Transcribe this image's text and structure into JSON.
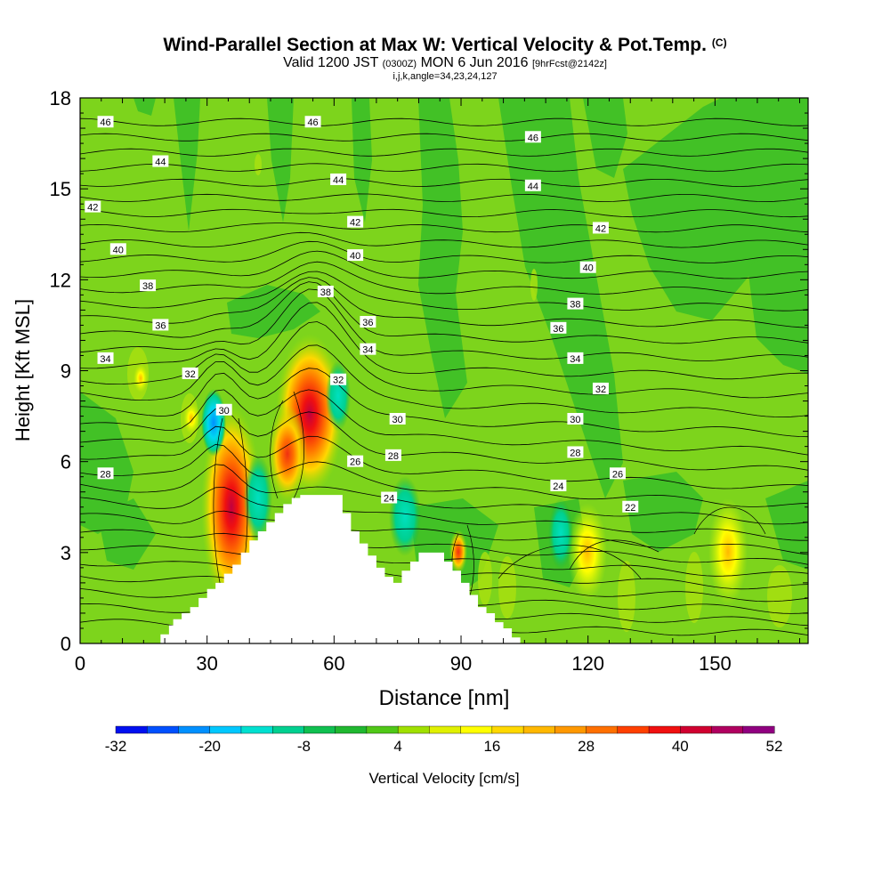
{
  "title": {
    "main": "Wind-Parallel Section at Max W: Vertical Velocity & Pot.Temp.",
    "main_suffix": "(C)",
    "valid_prefix": "Valid 1200 JST",
    "valid_utc": "(0300Z)",
    "valid_date": "MON 6 Jun 2016",
    "forecast": "[9hrFcst@2142z]",
    "indices": "i,j,k,angle=34,23,24,127"
  },
  "chart_data": {
    "type": "heatmap",
    "xlabel": "Distance [nm]",
    "ylabel": "Height [Kft MSL]",
    "xlim": [
      0,
      172
    ],
    "ylim": [
      0,
      18
    ],
    "xticks": [
      0,
      30,
      60,
      90,
      120,
      150
    ],
    "yticks": [
      0,
      3,
      6,
      9,
      12,
      15,
      18
    ],
    "colorbar": {
      "label": "Vertical Velocity [cm/s]",
      "tick_labels": [
        "-32",
        "-20",
        "-8",
        "4",
        "16",
        "28",
        "40",
        "52"
      ],
      "tick_values": [
        -32,
        -20,
        -8,
        4,
        16,
        28,
        40,
        52
      ],
      "bins": [
        -32,
        52
      ],
      "bin_width": 4,
      "colors": [
        "#0010f0",
        "#0050ff",
        "#0090ff",
        "#00c8ff",
        "#00e0d0",
        "#00d090",
        "#10c050",
        "#20b830",
        "#50c818",
        "#a0e000",
        "#e0f000",
        "#ffff00",
        "#ffd800",
        "#ffb800",
        "#ff9800",
        "#ff7000",
        "#ff4000",
        "#f01010",
        "#d00030",
        "#b00060",
        "#900080"
      ]
    },
    "background_value": 0,
    "terrain_kft": [
      [
        18,
        0
      ],
      [
        19,
        0.3
      ],
      [
        21,
        0.6
      ],
      [
        22,
        0.8
      ],
      [
        24,
        1.0
      ],
      [
        26,
        1.2
      ],
      [
        28,
        1.5
      ],
      [
        30,
        1.8
      ],
      [
        32,
        2.0
      ],
      [
        34,
        2.3
      ],
      [
        36,
        2.6
      ],
      [
        38,
        3.0
      ],
      [
        40,
        3.4
      ],
      [
        42,
        3.7
      ],
      [
        44,
        4.0
      ],
      [
        46,
        4.3
      ],
      [
        48,
        4.6
      ],
      [
        50,
        4.8
      ],
      [
        52,
        4.9
      ],
      [
        56,
        4.9
      ],
      [
        60,
        4.9
      ],
      [
        62,
        4.3
      ],
      [
        64,
        3.7
      ],
      [
        66,
        3.3
      ],
      [
        68,
        2.9
      ],
      [
        70,
        2.5
      ],
      [
        72,
        2.2
      ],
      [
        74,
        2.0
      ],
      [
        76,
        2.4
      ],
      [
        78,
        2.7
      ],
      [
        80,
        3.0
      ],
      [
        84,
        3.0
      ],
      [
        86,
        2.7
      ],
      [
        88,
        2.4
      ],
      [
        90,
        2.0
      ],
      [
        92,
        1.6
      ],
      [
        94,
        1.2
      ],
      [
        96,
        1.0
      ],
      [
        98,
        0.7
      ],
      [
        100,
        0.5
      ],
      [
        102,
        0.2
      ],
      [
        104,
        0
      ]
    ],
    "theta_labels": [
      {
        "value": "46",
        "x": 6,
        "y": 17.2
      },
      {
        "value": "44",
        "x": 19,
        "y": 15.9
      },
      {
        "value": "42",
        "x": 3,
        "y": 14.4
      },
      {
        "value": "40",
        "x": 9,
        "y": 13.0
      },
      {
        "value": "38",
        "x": 16,
        "y": 11.8
      },
      {
        "value": "36",
        "x": 19,
        "y": 10.5
      },
      {
        "value": "34",
        "x": 6,
        "y": 9.4
      },
      {
        "value": "32",
        "x": 26,
        "y": 8.9
      },
      {
        "value": "30",
        "x": 34,
        "y": 7.7
      },
      {
        "value": "28",
        "x": 6,
        "y": 5.6
      },
      {
        "value": "46",
        "x": 55,
        "y": 17.2
      },
      {
        "value": "44",
        "x": 61,
        "y": 15.3
      },
      {
        "value": "42",
        "x": 65,
        "y": 13.9
      },
      {
        "value": "40",
        "x": 65,
        "y": 12.8
      },
      {
        "value": "38",
        "x": 58,
        "y": 11.6
      },
      {
        "value": "36",
        "x": 68,
        "y": 10.6
      },
      {
        "value": "34",
        "x": 68,
        "y": 9.7
      },
      {
        "value": "32",
        "x": 61,
        "y": 8.7
      },
      {
        "value": "30",
        "x": 75,
        "y": 7.4
      },
      {
        "value": "28",
        "x": 74,
        "y": 6.2
      },
      {
        "value": "26",
        "x": 65,
        "y": 6.0
      },
      {
        "value": "24",
        "x": 73,
        "y": 4.8
      },
      {
        "value": "46",
        "x": 107,
        "y": 16.7
      },
      {
        "value": "44",
        "x": 107,
        "y": 15.1
      },
      {
        "value": "42",
        "x": 123,
        "y": 13.7
      },
      {
        "value": "40",
        "x": 120,
        "y": 12.4
      },
      {
        "value": "38",
        "x": 117,
        "y": 11.2
      },
      {
        "value": "36",
        "x": 113,
        "y": 10.4
      },
      {
        "value": "34",
        "x": 117,
        "y": 9.4
      },
      {
        "value": "32",
        "x": 123,
        "y": 8.4
      },
      {
        "value": "30",
        "x": 117,
        "y": 7.4
      },
      {
        "value": "28",
        "x": 117,
        "y": 6.3
      },
      {
        "value": "26",
        "x": 127,
        "y": 5.6
      },
      {
        "value": "24",
        "x": 113,
        "y": 5.2
      },
      {
        "value": "22",
        "x": 130,
        "y": 4.5
      }
    ]
  }
}
